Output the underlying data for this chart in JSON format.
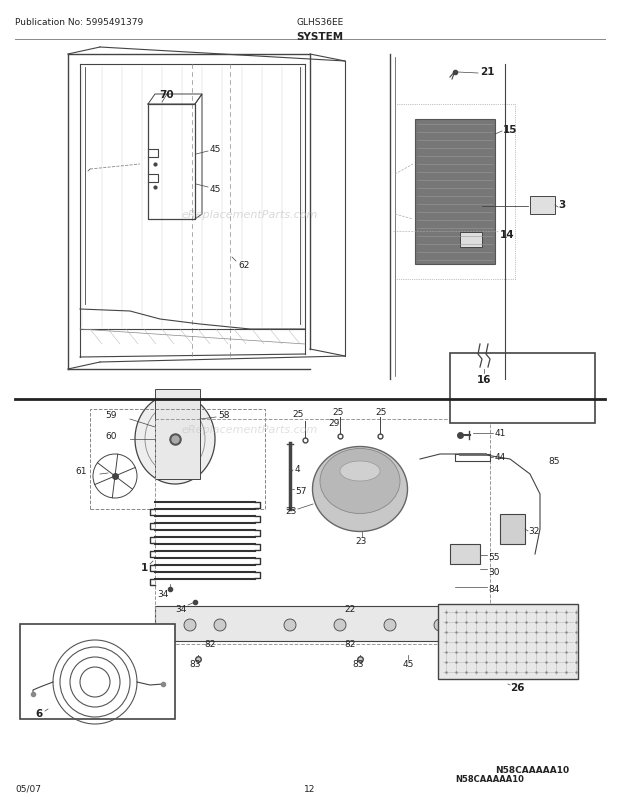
{
  "pub_no": "Publication No: 5995491379",
  "model": "GLHS36EE",
  "section": "SYSTEM",
  "date": "05/07",
  "page": "12",
  "watermark": "eReplacementParts.com",
  "diagram_code": "N58CAAAAA10",
  "bg_color": "#ffffff",
  "lc": "#444444",
  "tc": "#222222",
  "hfs": 6.5,
  "lfs": 6.5
}
